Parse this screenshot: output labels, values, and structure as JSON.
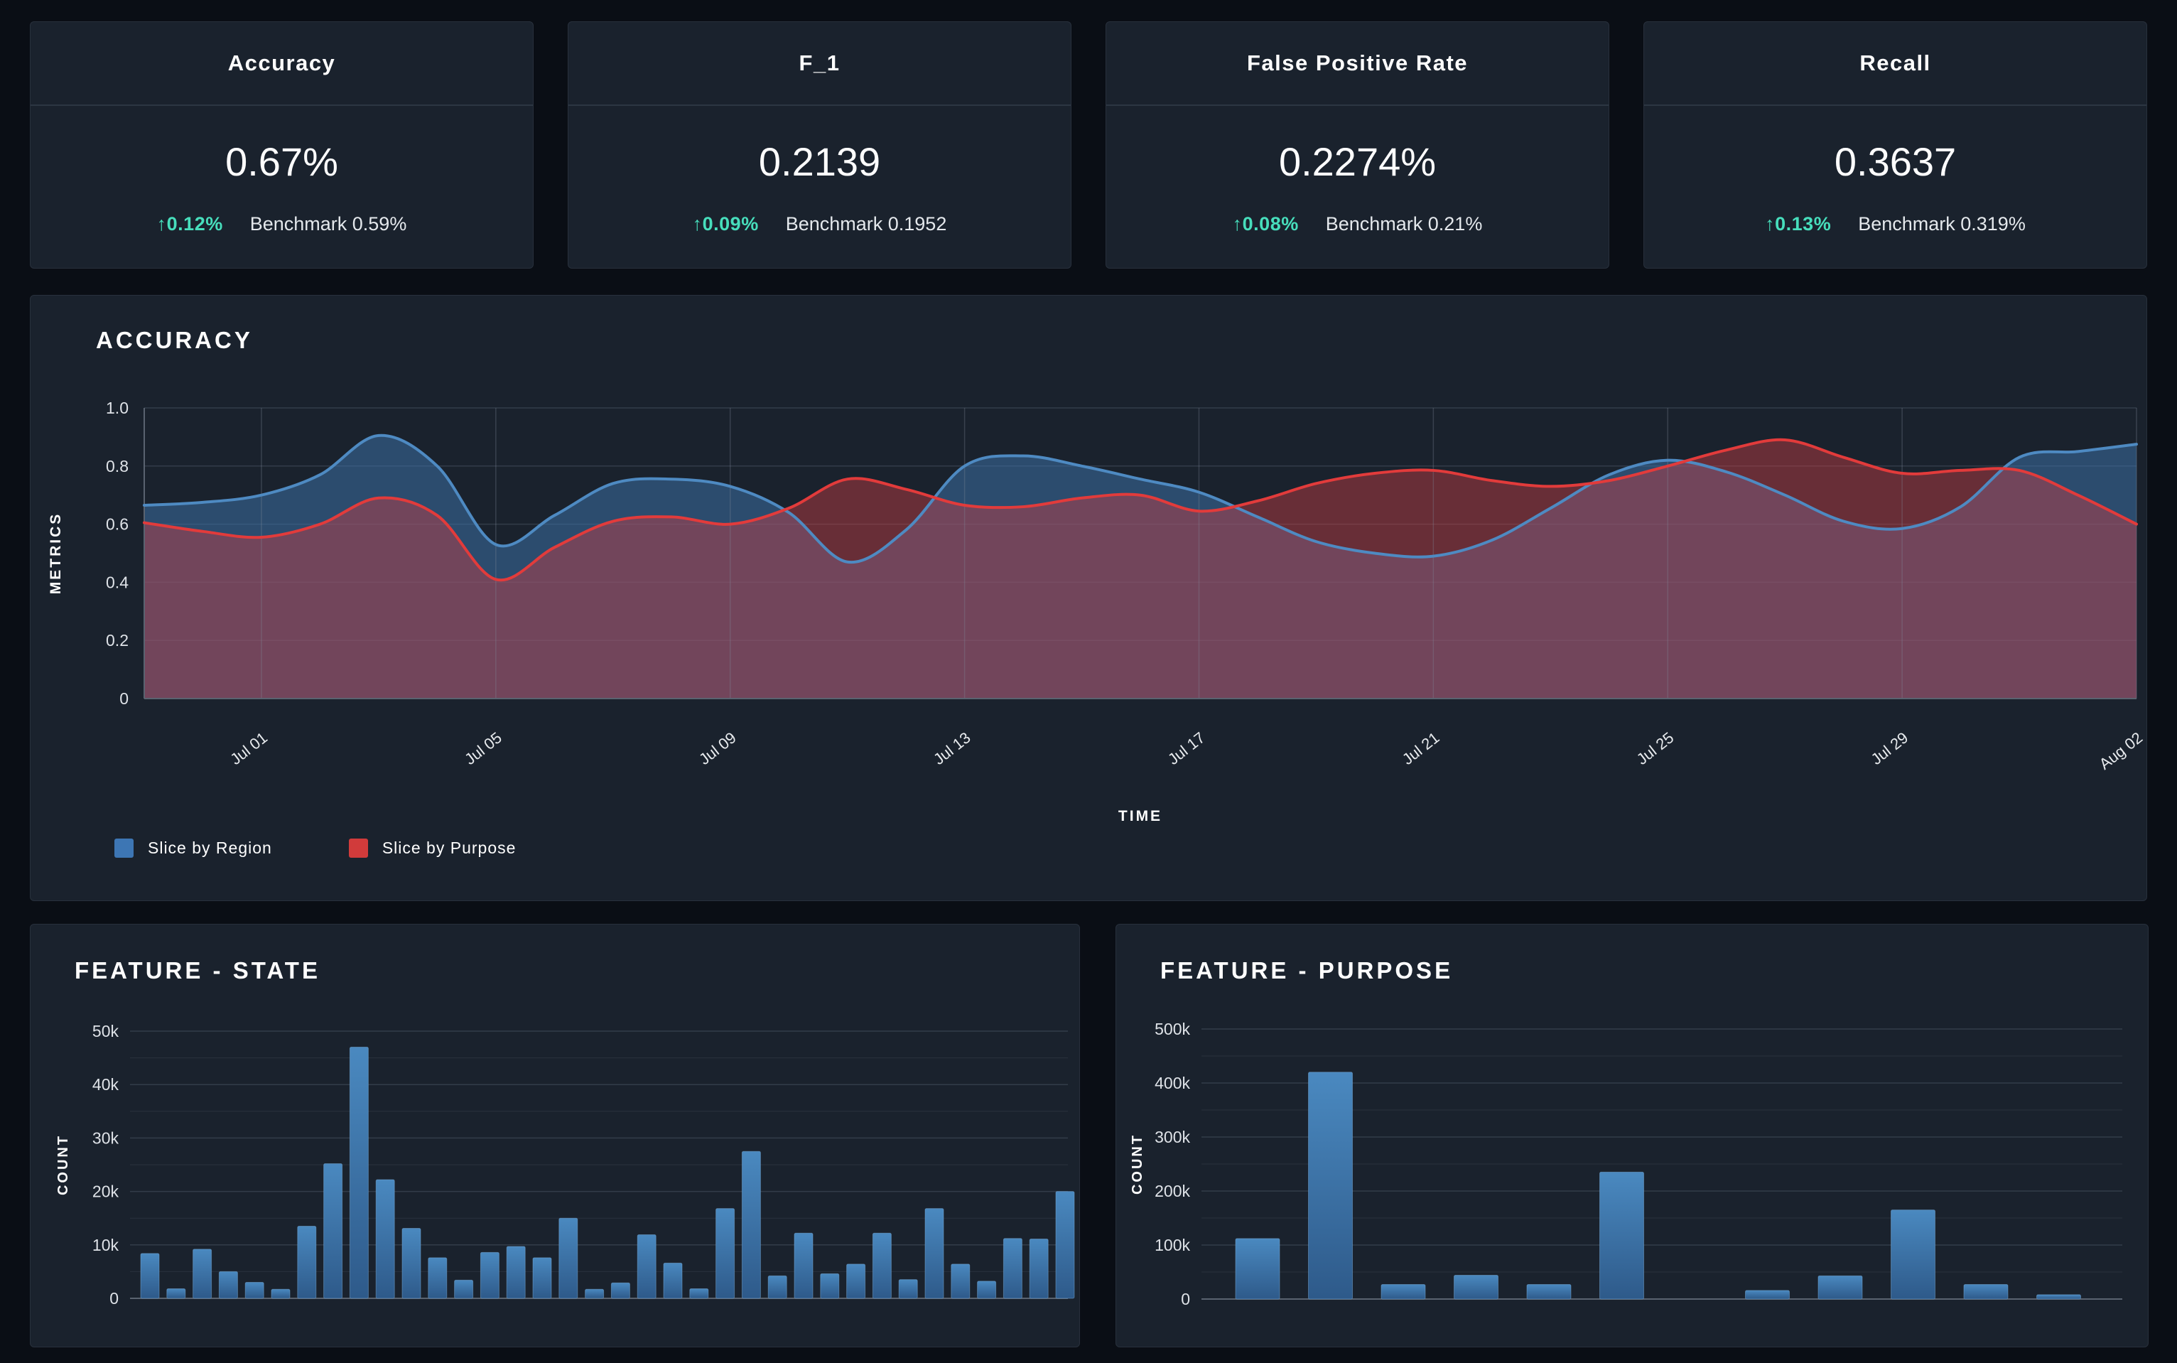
{
  "page": {
    "background": "#0a0e15",
    "card_background": "#1a222d"
  },
  "colors": {
    "accent_teal": "#47debc",
    "region_line": "#4e8ac2",
    "region_fill": "rgba(61,118,176,0.50)",
    "purpose_line": "#e23b3b",
    "purpose_fill": "rgba(199,62,69,0.45)",
    "bar_gradient_top": "#4a89c0",
    "bar_gradient_bottom": "#2e5a8a",
    "gridline": "#333c49",
    "axis_line": "#5a6370",
    "tick_text": "#dfe3e8"
  },
  "stat_cards": [
    {
      "title": "Accuracy",
      "value": "0.67%",
      "delta": "↑0.12%",
      "benchmark": "Benchmark 0.59%"
    },
    {
      "title": "F_1",
      "value": "0.2139",
      "delta": "↑0.09%",
      "benchmark": "Benchmark 0.1952"
    },
    {
      "title": "False Positive Rate",
      "value": "0.2274%",
      "delta": "↑0.08%",
      "benchmark": "Benchmark 0.21%"
    },
    {
      "title": "Recall",
      "value": "0.3637",
      "delta": "↑0.13%",
      "benchmark": "Benchmark 0.319%"
    }
  ],
  "chart_data": [
    {
      "type": "area",
      "title": "ACCURACY",
      "xlabel": "TIME",
      "ylabel": "METRICS",
      "ylim": [
        0,
        1
      ],
      "ytick_labels": [
        "0",
        "0.2",
        "0.4",
        "0.6",
        "0.8",
        "1.0"
      ],
      "grid": true,
      "legend_position": "bottom-left",
      "x": [
        "Jun 29",
        "Jun 30",
        "Jul 01",
        "Jul 02",
        "Jul 03",
        "Jul 04",
        "Jul 05",
        "Jul 06",
        "Jul 07",
        "Jul 08",
        "Jul 09",
        "Jul 10",
        "Jul 11",
        "Jul 12",
        "Jul 13",
        "Jul 14",
        "Jul 15",
        "Jul 16",
        "Jul 17",
        "Jul 18",
        "Jul 19",
        "Jul 20",
        "Jul 21",
        "Jul 22",
        "Jul 23",
        "Jul 24",
        "Jul 25",
        "Jul 26",
        "Jul 27",
        "Jul 28",
        "Jul 29",
        "Jul 30",
        "Jul 31",
        "Aug 01",
        "Aug 02"
      ],
      "x_tick_indices": [
        2,
        6,
        10,
        14,
        18,
        22,
        26,
        30,
        34
      ],
      "x_tick_labels": [
        "Jul 01",
        "Jul 05",
        "Jul 09",
        "Jul 13",
        "Jul 17",
        "Jul 21",
        "Jul 25",
        "Jul 29",
        "Aug 02"
      ],
      "series": [
        {
          "name": "Slice by Region",
          "color": "#3d76b4",
          "values": [
            0.665,
            0.675,
            0.7,
            0.77,
            0.905,
            0.8,
            0.53,
            0.63,
            0.74,
            0.755,
            0.73,
            0.64,
            0.47,
            0.58,
            0.8,
            0.835,
            0.8,
            0.755,
            0.71,
            0.625,
            0.54,
            0.5,
            0.49,
            0.545,
            0.655,
            0.77,
            0.82,
            0.78,
            0.7,
            0.61,
            0.585,
            0.66,
            0.83,
            0.85,
            0.875
          ]
        },
        {
          "name": "Slice by Purpose",
          "color": "#d13b3b",
          "values": [
            0.605,
            0.575,
            0.555,
            0.6,
            0.69,
            0.63,
            0.41,
            0.52,
            0.61,
            0.625,
            0.6,
            0.655,
            0.755,
            0.72,
            0.665,
            0.66,
            0.69,
            0.7,
            0.645,
            0.68,
            0.74,
            0.775,
            0.785,
            0.75,
            0.73,
            0.75,
            0.8,
            0.855,
            0.89,
            0.83,
            0.775,
            0.785,
            0.785,
            0.7,
            0.6
          ]
        }
      ]
    },
    {
      "type": "bar",
      "title": "FEATURE - STATE",
      "xlabel": "",
      "ylabel": "COUNT",
      "ylim": [
        0,
        50000
      ],
      "ytick_step": 10000,
      "minor_step": 5000,
      "ytick_labels": [
        "0",
        "10k",
        "20k",
        "30k",
        "40k",
        "50k"
      ],
      "categories": [],
      "values": [
        8400,
        1800,
        9200,
        5000,
        3000,
        1700,
        13500,
        25200,
        47000,
        22200,
        13100,
        7600,
        3400,
        8600,
        9700,
        7600,
        15000,
        1700,
        2900,
        11900,
        6600,
        1800,
        16800,
        27500,
        4200,
        12200,
        4600,
        6400,
        12200,
        3500,
        16800,
        6400,
        3200,
        11200,
        11100,
        20000
      ]
    },
    {
      "type": "bar",
      "title": "FEATURE - PURPOSE",
      "xlabel": "",
      "ylabel": "COUNT",
      "ylim": [
        0,
        500000
      ],
      "ytick_step": 100000,
      "minor_step": 50000,
      "ytick_labels": [
        "0",
        "100k",
        "200k",
        "300k",
        "400k",
        "500k"
      ],
      "categories": [],
      "values": [
        112000,
        420000,
        27000,
        44000,
        27000,
        235000,
        null,
        16000,
        43000,
        165000,
        27000,
        8000
      ]
    }
  ]
}
